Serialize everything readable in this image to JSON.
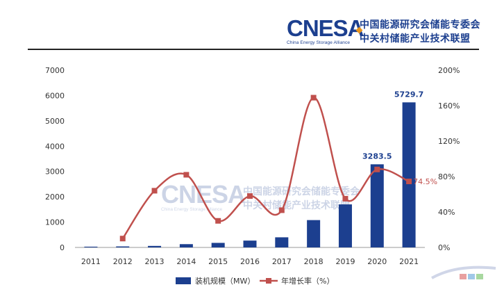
{
  "header": {
    "brand": "CNESA",
    "brand_subtitle": "China Energy Storage Alliance",
    "org_line1": "中国能源研究会储能专委会",
    "org_line2": "中关村储能产业技术联盟"
  },
  "watermark": {
    "brand": "CNESA",
    "brand_subtitle": "China Energy Storage Alliance",
    "org_line1": "中国能源研究会储能专委会",
    "org_line2": "中关村储能产业技术联盟"
  },
  "colors": {
    "bar": "#1c3f8f",
    "line": "#c0504d",
    "brand": "#1c3f8f"
  },
  "chart_data": {
    "type": "bar",
    "categories": [
      "2011",
      "2012",
      "2013",
      "2014",
      "2015",
      "2016",
      "2017",
      "2018",
      "2019",
      "2020",
      "2021"
    ],
    "series": [
      {
        "name": "装机规模（MW）",
        "type": "bar",
        "axis": "left",
        "values": [
          30,
          40,
          60,
          130,
          180,
          270,
          400,
          1080,
          1700,
          3283.5,
          5729.7
        ]
      },
      {
        "name": "年增长率（%）",
        "type": "line",
        "axis": "right",
        "values": [
          null,
          10,
          64,
          82,
          30,
          58,
          42,
          169,
          55,
          88,
          74.5
        ]
      }
    ],
    "y_left": {
      "min": 0,
      "max": 7000,
      "ticks": [
        "0",
        "1000",
        "2000",
        "3000",
        "4000",
        "5000",
        "6000",
        "7000"
      ]
    },
    "y_right": {
      "min": 0,
      "max": 200,
      "ticks": [
        "0%",
        "40%",
        "80%",
        "120%",
        "160%",
        "200%"
      ]
    },
    "data_labels": [
      {
        "series": 0,
        "index": 9,
        "text": "3283.5"
      },
      {
        "series": 0,
        "index": 10,
        "text": "5729.7"
      },
      {
        "series": 1,
        "index": 10,
        "text": "74.5%"
      }
    ],
    "legend": {
      "position": "bottom",
      "bar": "装机规模（MW）",
      "line": "年增长率（%）"
    },
    "grid": false
  }
}
